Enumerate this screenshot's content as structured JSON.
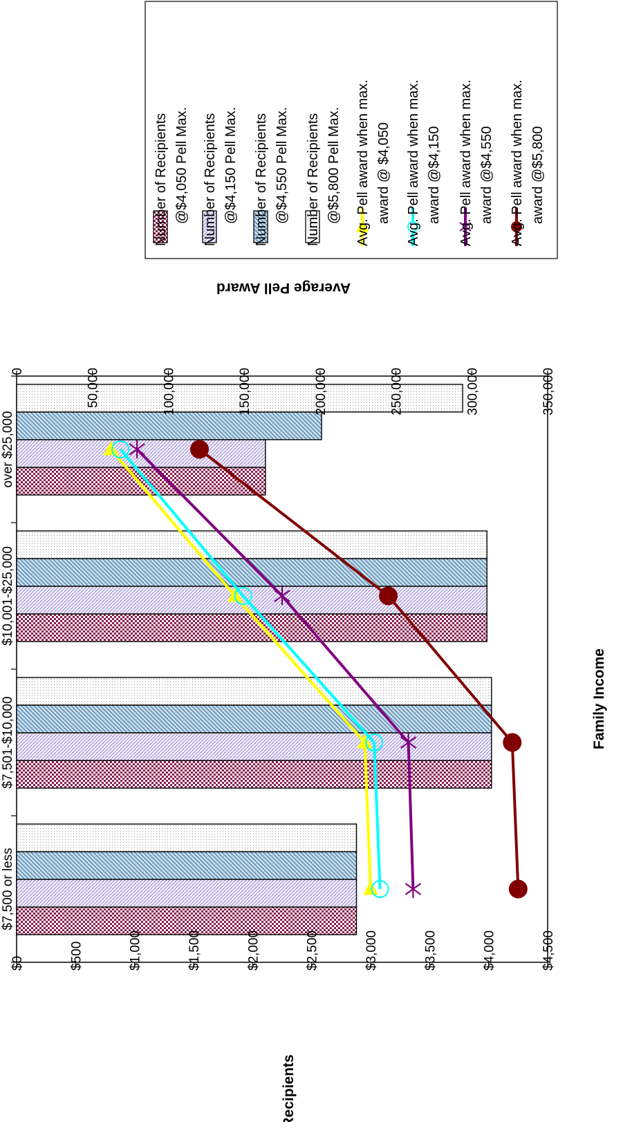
{
  "chart_data": {
    "type": "bar",
    "orientation": "rotated-90-clockwise",
    "title": "",
    "xlabel": "Family Income",
    "ylabel": "Pell Recipients",
    "y2label": "Average Pell Award",
    "categories": [
      "$7,500 or less",
      "$7,501-$10,000",
      "$10,001-$25,000",
      "over $25,000"
    ],
    "ylim": [
      0,
      350000
    ],
    "yticks": [
      0,
      50000,
      100000,
      150000,
      200000,
      250000,
      300000,
      350000
    ],
    "ytick_labels": [
      "0",
      "50,000",
      "100,000",
      "150,000",
      "200,000",
      "250,000",
      "300,000",
      "350,000"
    ],
    "y2lim": [
      0,
      4500
    ],
    "y2ticks": [
      0,
      500,
      1000,
      1500,
      2000,
      2500,
      3000,
      3500,
      4000,
      4500
    ],
    "y2tick_labels": [
      "$0",
      "$500",
      "$1,000",
      "$1,500",
      "$2,000",
      "$2,500",
      "$3,000",
      "$3,500",
      "$4,000",
      "$4,500"
    ],
    "grid": false,
    "legend_position": "right",
    "series": [
      {
        "name": "Number of Recipients @$4,050 Pell  Max.",
        "kind": "bar",
        "axis": "left",
        "pattern": "checker",
        "color": "#8B1A4B",
        "values": [
          224000,
          313000,
          310000,
          164000
        ]
      },
      {
        "name": "Number of Recipients @$4,150 Pell  Max.",
        "kind": "bar",
        "axis": "left",
        "pattern": "lavender-hatch",
        "color": "#9A8ACC",
        "values": [
          224000,
          313000,
          310000,
          164000
        ]
      },
      {
        "name": "Number of Recipients @$4,550 Pell Max.",
        "kind": "bar",
        "axis": "left",
        "pattern": "blue-diagonal",
        "color": "#4C7FA8",
        "values": [
          224000,
          313000,
          310000,
          201000
        ]
      },
      {
        "name": "Number of Recipients @$5,800 Pell Max.",
        "kind": "bar",
        "axis": "left",
        "pattern": "dotted",
        "color": "#8C8C8C",
        "values": [
          224000,
          313000,
          310000,
          294000
        ]
      },
      {
        "name": "Avg. Pell award when max. award @ $4,050",
        "kind": "line",
        "axis": "right",
        "marker": "triangle",
        "color": "#FFFF00",
        "values": [
          3000,
          2950,
          1850,
          800
        ]
      },
      {
        "name": "Avg. Pell award when max. award @$4,150",
        "kind": "line",
        "axis": "right",
        "marker": "open-circle",
        "color": "#00FFFF",
        "values": [
          3080,
          3030,
          1920,
          880
        ]
      },
      {
        "name": "Avg. Pell  award  when max. award @$4,550",
        "kind": "line",
        "axis": "right",
        "marker": "star",
        "color": "#800080",
        "values": [
          3360,
          3320,
          2250,
          1020
        ]
      },
      {
        "name": "Avg. Pell award  when max. award @$5,800",
        "kind": "line",
        "axis": "right",
        "marker": "filled-circle",
        "color": "#800000",
        "values": [
          4250,
          4200,
          3150,
          1550
        ]
      }
    ],
    "legend": [
      [
        "Number of Recipients",
        "@$4,050 Pell  Max."
      ],
      [
        "Number of Recipients",
        "@$4,150 Pell  Max."
      ],
      [
        "Number of Recipients",
        "@$4,550 Pell Max."
      ],
      [
        "Number of Recipients",
        "@$5,800 Pell Max."
      ],
      [
        "Avg.  Pell  award when max.",
        "award  @ $4,050"
      ],
      [
        "Avg.  Pell  award when max.",
        "award @$4,150"
      ],
      [
        "Avg.  Pell  award   when max.",
        "award @$4,550"
      ],
      [
        "Avg.  Pell  award   when max.",
        "award @$5,800"
      ]
    ]
  }
}
